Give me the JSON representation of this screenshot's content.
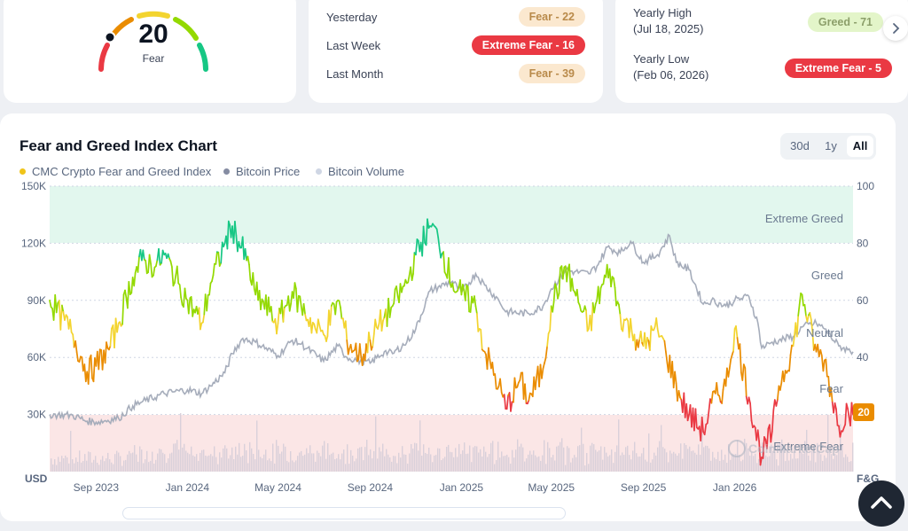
{
  "gauge": {
    "value": "20",
    "label": "Fear"
  },
  "history": [
    {
      "label": "Yesterday",
      "badge": "Fear - 22",
      "kind": "fear"
    },
    {
      "label": "Last Week",
      "badge": "Extreme Fear - 16",
      "kind": "xfear"
    },
    {
      "label": "Last Month",
      "badge": "Fear - 39",
      "kind": "fear"
    }
  ],
  "yearly": {
    "high_label": "Yearly High",
    "high_date": "(Jul 18, 2025)",
    "high_badge": "Greed - 71",
    "low_label": "Yearly Low",
    "low_date": "(Feb 06, 2026)",
    "low_badge": "Extreme Fear - 5"
  },
  "tabs": [
    "30d",
    "1y",
    "All"
  ],
  "active_tab": "All",
  "colors": {
    "extreme_fear": "#ea3943",
    "fear": "#ea8c00",
    "neutral": "#f3d42f",
    "greed": "#93d900",
    "extreme_greed": "#16c784",
    "price": "#a6adbb",
    "volume": "#d9d0da"
  },
  "chart_data": {
    "type": "line",
    "title": "Fear and Greed Index Chart",
    "legend": [
      "CMC Crypto Fear and Greed Index",
      "Bitcoin Price",
      "Bitcoin Volume"
    ],
    "x_ticks": [
      "Sep 2023",
      "Jan 2024",
      "May 2024",
      "Sep 2024",
      "Jan 2025",
      "May 2025",
      "Sep 2025",
      "Jan 2026"
    ],
    "left_ticks": [
      "150K",
      "120K",
      "90K",
      "60K",
      "30K"
    ],
    "left_unit": "USD",
    "right_ticks": [
      "100",
      "80",
      "60",
      "40",
      "20"
    ],
    "right_unit": "F&G",
    "ylim_left": [
      0,
      150000
    ],
    "ylim_right": [
      0,
      100
    ],
    "zones": [
      "Extreme Greed",
      "Greed",
      "Neutral",
      "Fear",
      "Extreme Fear"
    ],
    "current_value": "20",
    "watermark": "CoinMarketCap",
    "fear_greed_series": [
      [
        "2023-07",
        60
      ],
      [
        "2023-08",
        48
      ],
      [
        "2023-08-20",
        35
      ],
      [
        "2023-09",
        37
      ],
      [
        "2023-09-20",
        44
      ],
      [
        "2023-10",
        52
      ],
      [
        "2023-10-20",
        68
      ],
      [
        "2023-11",
        74
      ],
      [
        "2023-11-20",
        72
      ],
      [
        "2023-12",
        76
      ],
      [
        "2023-12-20",
        66
      ],
      [
        "2024-01",
        60
      ],
      [
        "2024-01-20",
        52
      ],
      [
        "2024-02",
        66
      ],
      [
        "2024-02-20",
        80
      ],
      [
        "2024-03",
        86
      ],
      [
        "2024-03-20",
        74
      ],
      [
        "2024-04",
        62
      ],
      [
        "2024-04-20",
        56
      ],
      [
        "2024-05",
        52
      ],
      [
        "2024-05-20",
        63
      ],
      [
        "2024-06",
        58
      ],
      [
        "2024-06-20",
        50
      ],
      [
        "2024-07",
        48
      ],
      [
        "2024-07-20",
        60
      ],
      [
        "2024-08",
        46
      ],
      [
        "2024-08-20",
        40
      ],
      [
        "2024-09",
        46
      ],
      [
        "2024-09-20",
        54
      ],
      [
        "2024-10",
        58
      ],
      [
        "2024-10-20",
        66
      ],
      [
        "2024-11",
        76
      ],
      [
        "2024-11-20",
        86
      ],
      [
        "2024-12",
        82
      ],
      [
        "2024-12-20",
        66
      ],
      [
        "2025-01",
        62
      ],
      [
        "2025-01-20",
        58
      ],
      [
        "2025-02",
        42
      ],
      [
        "2025-02-20",
        30
      ],
      [
        "2025-03",
        22
      ],
      [
        "2025-03-20",
        32
      ],
      [
        "2025-04",
        25
      ],
      [
        "2025-04-20",
        36
      ],
      [
        "2025-05",
        58
      ],
      [
        "2025-05-20",
        72
      ],
      [
        "2025-06",
        63
      ],
      [
        "2025-06-20",
        50
      ],
      [
        "2025-07",
        60
      ],
      [
        "2025-07-18",
        71
      ],
      [
        "2025-08",
        55
      ],
      [
        "2025-08-20",
        48
      ],
      [
        "2025-09",
        44
      ],
      [
        "2025-09-20",
        50
      ],
      [
        "2025-10",
        42
      ],
      [
        "2025-10-20",
        26
      ],
      [
        "2025-11",
        20
      ],
      [
        "2025-11-20",
        14
      ],
      [
        "2025-12",
        24
      ],
      [
        "2025-12-20",
        30
      ],
      [
        "2026-01",
        50
      ],
      [
        "2026-01-20",
        26
      ],
      [
        "2026-02-06",
        5
      ],
      [
        "2026-02-20",
        14
      ],
      [
        "2026-03",
        30
      ],
      [
        "2026-03-20",
        44
      ],
      [
        "2026-04",
        62
      ],
      [
        "2026-04-20",
        42
      ],
      [
        "2026-05",
        39
      ],
      [
        "2026-05-20",
        16
      ],
      [
        "2026-06",
        22
      ],
      [
        "2026-06-08",
        20
      ]
    ],
    "bitcoin_price_series": [
      [
        "2023-07",
        30000
      ],
      [
        "2023-08",
        29500
      ],
      [
        "2023-08-20",
        26500
      ],
      [
        "2023-09",
        26000
      ],
      [
        "2023-10",
        28000
      ],
      [
        "2023-10-20",
        34500
      ],
      [
        "2023-11",
        36500
      ],
      [
        "2023-12",
        41000
      ],
      [
        "2024-01",
        43000
      ],
      [
        "2024-01-20",
        41000
      ],
      [
        "2024-02",
        45000
      ],
      [
        "2024-02-20",
        52000
      ],
      [
        "2024-03",
        62000
      ],
      [
        "2024-03-15",
        70000
      ],
      [
        "2024-04",
        68000
      ],
      [
        "2024-05",
        61000
      ],
      [
        "2024-05-20",
        69000
      ],
      [
        "2024-06",
        67000
      ],
      [
        "2024-07",
        58000
      ],
      [
        "2024-07-20",
        66000
      ],
      [
        "2024-08",
        60000
      ],
      [
        "2024-09",
        57000
      ],
      [
        "2024-09-20",
        63000
      ],
      [
        "2024-10",
        62000
      ],
      [
        "2024-10-20",
        68000
      ],
      [
        "2024-11",
        75000
      ],
      [
        "2024-11-20",
        95000
      ],
      [
        "2024-12",
        97000
      ],
      [
        "2024-12-20",
        100000
      ],
      [
        "2025-01",
        94000
      ],
      [
        "2025-01-20",
        104000
      ],
      [
        "2025-02",
        98000
      ],
      [
        "2025-02-20",
        90000
      ],
      [
        "2025-03",
        84000
      ],
      [
        "2025-04",
        83000
      ],
      [
        "2025-04-20",
        87000
      ],
      [
        "2025-05",
        96000
      ],
      [
        "2025-05-20",
        106000
      ],
      [
        "2025-06",
        105000
      ],
      [
        "2025-06-20",
        104000
      ],
      [
        "2025-07",
        108000
      ],
      [
        "2025-07-15",
        118000
      ],
      [
        "2025-08",
        115000
      ],
      [
        "2025-08-15",
        121000
      ],
      [
        "2025-09",
        110000
      ],
      [
        "2025-09-20",
        114000
      ],
      [
        "2025-10-06",
        124000
      ],
      [
        "2025-10-15",
        110000
      ],
      [
        "2025-11",
        106000
      ],
      [
        "2025-11-20",
        88000
      ],
      [
        "2025-12",
        90000
      ],
      [
        "2025-12-20",
        87000
      ],
      [
        "2026-01",
        90000
      ],
      [
        "2026-01-20",
        92000
      ],
      [
        "2026-02",
        78000
      ],
      [
        "2026-02-06",
        65000
      ],
      [
        "2026-02-20",
        68000
      ],
      [
        "2026-03",
        69000
      ],
      [
        "2026-03-20",
        71000
      ],
      [
        "2026-04",
        76000
      ],
      [
        "2026-04-20",
        78000
      ],
      [
        "2026-05",
        75000
      ],
      [
        "2026-05-20",
        66000
      ],
      [
        "2026-06",
        64000
      ],
      [
        "2026-06-08",
        63000
      ]
    ]
  }
}
